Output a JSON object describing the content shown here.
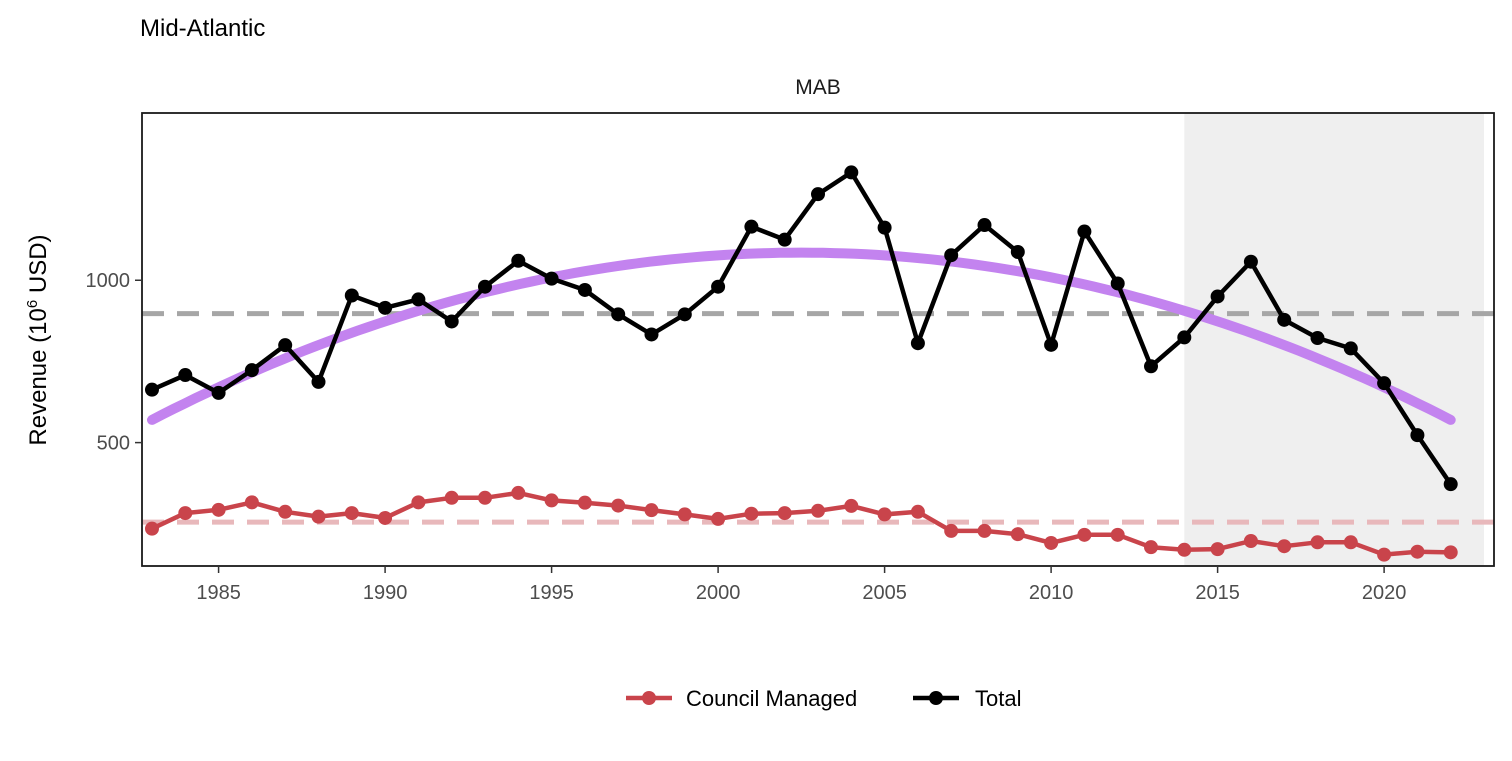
{
  "page_title": "Mid-Atlantic",
  "chart_data": {
    "type": "line",
    "facet_label": "MAB",
    "ylabel_prefix": "Revenue (10",
    "ylabel_exp": "6",
    "ylabel_suffix": " USD)",
    "xlabel": "",
    "xlim": [
      1982.7,
      2023.3
    ],
    "ylim": [
      120,
      1515
    ],
    "xticks": [
      1985,
      1990,
      1995,
      2000,
      2005,
      2010,
      2015,
      2020
    ],
    "yticks": [
      500,
      1000
    ],
    "grid": false,
    "legend_position": "bottom",
    "shaded_region": {
      "x_start": 2014,
      "x_end": 2023,
      "color": "#efefef"
    },
    "x": [
      1983,
      1984,
      1985,
      1986,
      1987,
      1988,
      1989,
      1990,
      1991,
      1992,
      1993,
      1994,
      1995,
      1996,
      1997,
      1998,
      1999,
      2000,
      2001,
      2002,
      2003,
      2004,
      2005,
      2006,
      2007,
      2008,
      2009,
      2010,
      2011,
      2012,
      2013,
      2014,
      2015,
      2016,
      2017,
      2018,
      2019,
      2020,
      2021,
      2022
    ],
    "series": [
      {
        "name": "Council Managed",
        "color": "#c9444b",
        "mean": 255,
        "mean_color": "#e8b8bb",
        "values": [
          235,
          283,
          293,
          316,
          287,
          272,
          283,
          268,
          316,
          330,
          330,
          345,
          322,
          315,
          306,
          292,
          279,
          265,
          281,
          283,
          290,
          305,
          279,
          287,
          228,
          228,
          218,
          191,
          216,
          216,
          178,
          170,
          172,
          197,
          181,
          193,
          193,
          155,
          164,
          162
        ]
      },
      {
        "name": "Total",
        "color": "#000000",
        "mean": 897,
        "mean_color": "#a6a6a6",
        "values": [
          663,
          708,
          653,
          723,
          800,
          687,
          953,
          915,
          941,
          873,
          980,
          1060,
          1005,
          970,
          895,
          833,
          895,
          980,
          1165,
          1125,
          1265,
          1332,
          1162,
          806,
          1077,
          1170,
          1087,
          801,
          1150,
          990,
          735,
          824,
          950,
          1057,
          878,
          822,
          790,
          683,
          523,
          372
        ]
      }
    ],
    "trend": {
      "color": "#c383ef",
      "x_start": 1983,
      "x_end": 2022,
      "peak_x": 2002.5,
      "peak_y": 1085,
      "y_start": 590,
      "y_end": 550
    }
  }
}
